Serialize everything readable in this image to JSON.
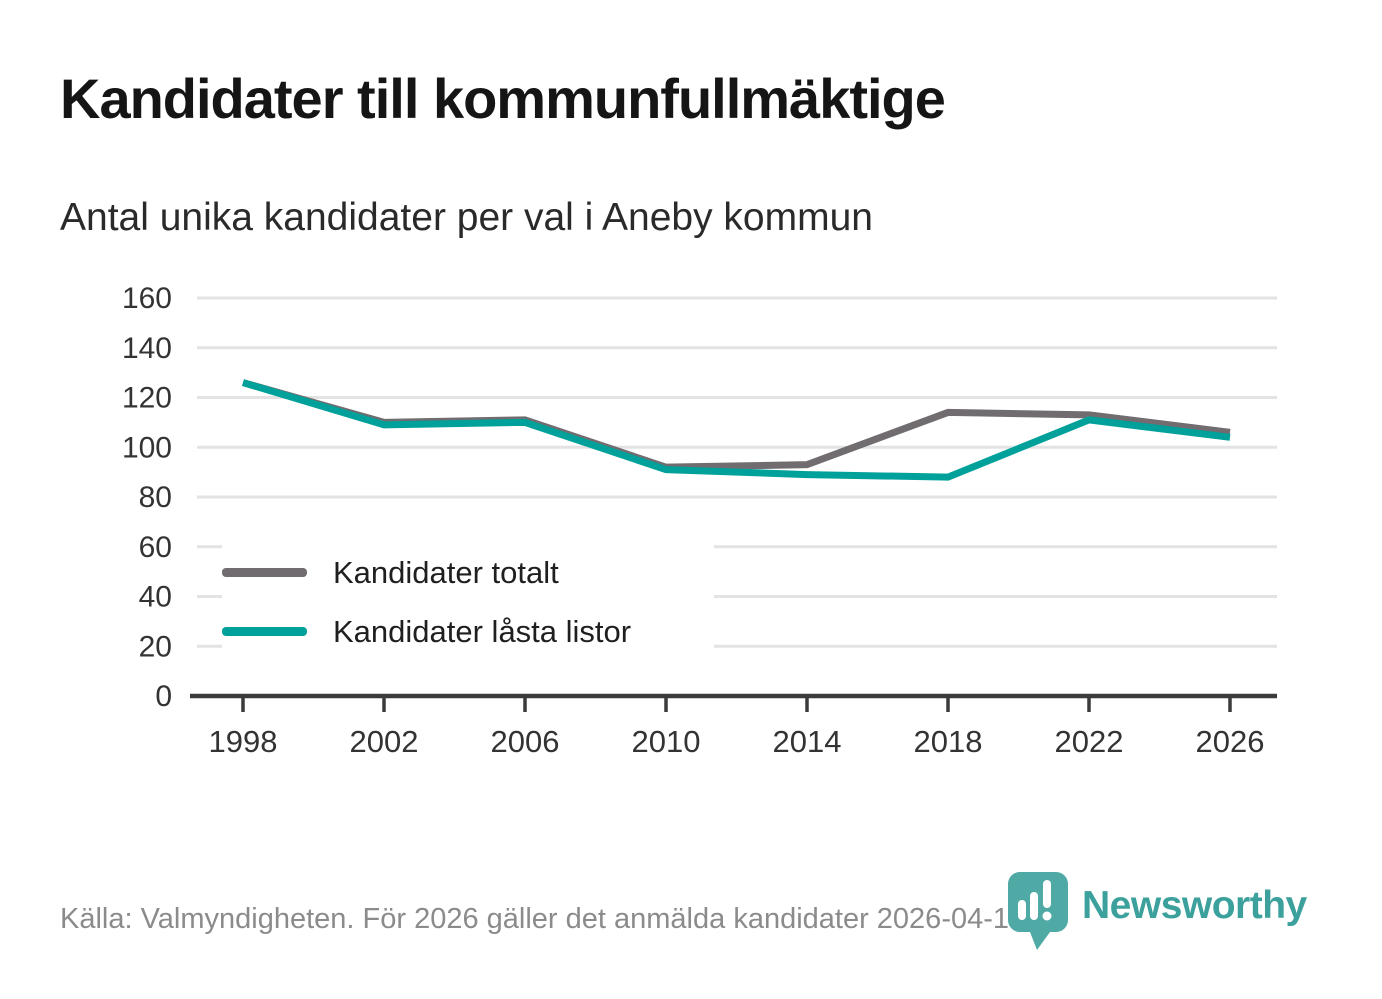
{
  "header": {
    "title": "Kandidater till kommunfullmäktige",
    "subtitle": "Antal unika kandidater per val i Aneby kommun"
  },
  "chart_data": {
    "type": "line",
    "title": "Kandidater till kommunfullmäktige",
    "subtitle": "Antal unika kandidater per val i Aneby kommun",
    "x": [
      1998,
      2002,
      2006,
      2010,
      2014,
      2018,
      2022,
      2026
    ],
    "series": [
      {
        "name": "Kandidater totalt",
        "color": "#706c70",
        "values": [
          126,
          110,
          111,
          92,
          93,
          114,
          113,
          106
        ]
      },
      {
        "name": "Kandidater låsta listor",
        "color": "#00a19a",
        "values": [
          126,
          109,
          110,
          91,
          89,
          88,
          111,
          104
        ]
      }
    ],
    "ylim": [
      0,
      160
    ],
    "yticks": [
      0,
      20,
      40,
      60,
      80,
      100,
      120,
      140,
      160
    ],
    "grid": true,
    "legend_position": "inside-left-bottom",
    "xlabel": "",
    "ylabel": ""
  },
  "legend": {
    "items": [
      {
        "label": "Kandidater totalt",
        "color": "#706c70"
      },
      {
        "label": "Kandidater låsta listor",
        "color": "#00a19a"
      }
    ]
  },
  "footer": {
    "source_text": "Källa: Valmyndigheten. För 2026 gäller det anmälda kandidater 2026-04-10."
  },
  "branding": {
    "logo_text": "Newsworthy",
    "logo_text_color": "#3ca19d",
    "pin_color": "#4fa9a5",
    "pin_bar_color": "#ffffff"
  },
  "colors": {
    "background": "#ffffff",
    "gridline": "#e3e3e3",
    "axis": "#3b3b3b",
    "tick_label": "#333333",
    "title": "#151515",
    "subtitle": "#2a2a2a",
    "footer_text": "#8b8b8b"
  }
}
